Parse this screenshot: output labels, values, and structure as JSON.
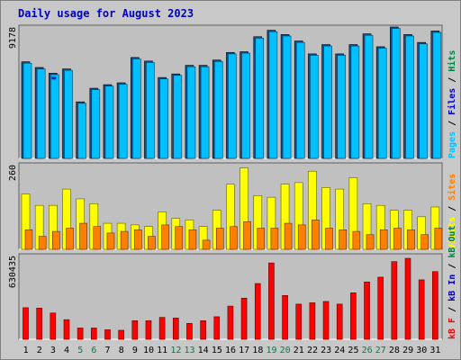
{
  "chart_data": {
    "type": "bar",
    "title": "Daily usage for August 2023",
    "categories": [
      "1",
      "2",
      "3",
      "4",
      "5",
      "6",
      "7",
      "8",
      "9",
      "10",
      "11",
      "12",
      "13",
      "14",
      "15",
      "16",
      "17",
      "18",
      "19",
      "20",
      "21",
      "22",
      "23",
      "24",
      "25",
      "26",
      "27",
      "28",
      "29",
      "30",
      "31"
    ],
    "weekend_days": [
      "5",
      "6",
      "12",
      "13",
      "19",
      "20",
      "26",
      "27"
    ],
    "panels": [
      {
        "name": "hits-files-pages",
        "ymax_label": "9178",
        "ymax": 9178,
        "legend": [
          "Pages",
          "Files",
          "Hits"
        ],
        "series": [
          {
            "name": "Hits",
            "color": "#008040",
            "values": [
              6750,
              6350,
              5950,
              6250,
              3950,
              4900,
              5150,
              5280,
              7050,
              6800,
              5650,
              5900,
              6500,
              6500,
              6870,
              7400,
              7450,
              8500,
              8950,
              8650,
              8200,
              7300,
              7950,
              7300,
              7950,
              8700,
              7800,
              9178,
              8650,
              8100,
              8900
            ]
          },
          {
            "name": "Files",
            "color": "#00c0ff",
            "values": [
              6650,
              6250,
              5850,
              6150,
              3850,
              4800,
              5050,
              5180,
              6950,
              6700,
              5550,
              5800,
              6400,
              6400,
              6770,
              7300,
              7350,
              8400,
              8850,
              8550,
              8100,
              7200,
              7850,
              7200,
              7850,
              8600,
              7700,
              9080,
              8550,
              8000,
              8800
            ]
          },
          {
            "name": "Pages",
            "color": "#00c0ff",
            "values": [
              0,
              0,
              5700,
              0,
              0,
              0,
              0,
              0,
              0,
              0,
              0,
              0,
              0,
              0,
              0,
              0,
              0,
              0,
              0,
              0,
              0,
              0,
              0,
              0,
              0,
              0,
              0,
              0,
              0,
              0,
              0
            ]
          }
        ]
      },
      {
        "name": "visits-sites",
        "ymax_label": "260",
        "ymax": 260,
        "legend": [
          "Visits",
          "Sites"
        ],
        "series": [
          {
            "name": "Visits",
            "color": "#ffff00",
            "values": [
              170,
              135,
              135,
              185,
              155,
              140,
              80,
              80,
              75,
              70,
              115,
              95,
              90,
              70,
              120,
              200,
              250,
              165,
              160,
              200,
              205,
              240,
              190,
              185,
              220,
              140,
              135,
              120,
              120,
              100,
              130
            ]
          },
          {
            "name": "Sites",
            "color": "#ff8000",
            "values": [
              60,
              40,
              55,
              65,
              80,
              70,
              50,
              55,
              60,
              40,
              75,
              70,
              60,
              28,
              65,
              70,
              85,
              65,
              65,
              80,
              75,
              90,
              65,
              60,
              55,
              45,
              60,
              65,
              60,
              45,
              65
            ]
          }
        ]
      },
      {
        "name": "kbytes",
        "ymax_label": "630435",
        "ymax": 630435,
        "legend": [
          "kB F",
          "kB In",
          "kB Out"
        ],
        "series": [
          {
            "name": "kB F",
            "color": "#ff0000",
            "values": [
              238000,
              235000,
              198000,
              148000,
              85000,
              85000,
              72000,
              68000,
              140000,
              140000,
              165000,
              160000,
              120000,
              140000,
              170000,
              250000,
              310000,
              420000,
              575000,
              330000,
              265000,
              275000,
              285000,
              265000,
              350000,
              432000,
              468000,
              585000,
              610000,
              448000,
              510000
            ]
          }
        ]
      }
    ]
  }
}
